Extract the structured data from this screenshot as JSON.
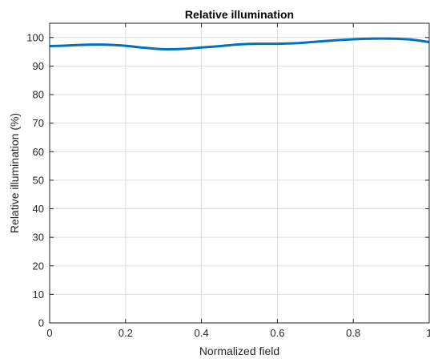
{
  "chart_data": {
    "type": "line",
    "title": "Relative illumination",
    "xlabel": "Normalized field",
    "ylabel": "Relative illumination (%)",
    "xlim": [
      0,
      1
    ],
    "ylim": [
      0,
      105
    ],
    "xticks": [
      0,
      0.2,
      0.4,
      0.6,
      0.8,
      1
    ],
    "xtick_labels": [
      "0",
      "0.2",
      "0.4",
      "0.6",
      "0.8",
      "1"
    ],
    "yticks": [
      0,
      10,
      20,
      30,
      40,
      50,
      60,
      70,
      80,
      90,
      100
    ],
    "ytick_labels": [
      "0",
      "10",
      "20",
      "30",
      "40",
      "50",
      "60",
      "70",
      "80",
      "90",
      "100"
    ],
    "grid": true,
    "series": [
      {
        "color": "#0072BD",
        "x": [
          0,
          0.05,
          0.1,
          0.15,
          0.2,
          0.25,
          0.3,
          0.35,
          0.4,
          0.45,
          0.5,
          0.55,
          0.6,
          0.65,
          0.7,
          0.75,
          0.8,
          0.85,
          0.9,
          0.95,
          1
        ],
        "y": [
          97.0,
          97.2,
          97.5,
          97.5,
          97.1,
          96.4,
          95.9,
          96.0,
          96.5,
          97.0,
          97.6,
          97.8,
          97.8,
          98.0,
          98.5,
          99.0,
          99.4,
          99.6,
          99.6,
          99.3,
          98.4
        ]
      }
    ]
  }
}
